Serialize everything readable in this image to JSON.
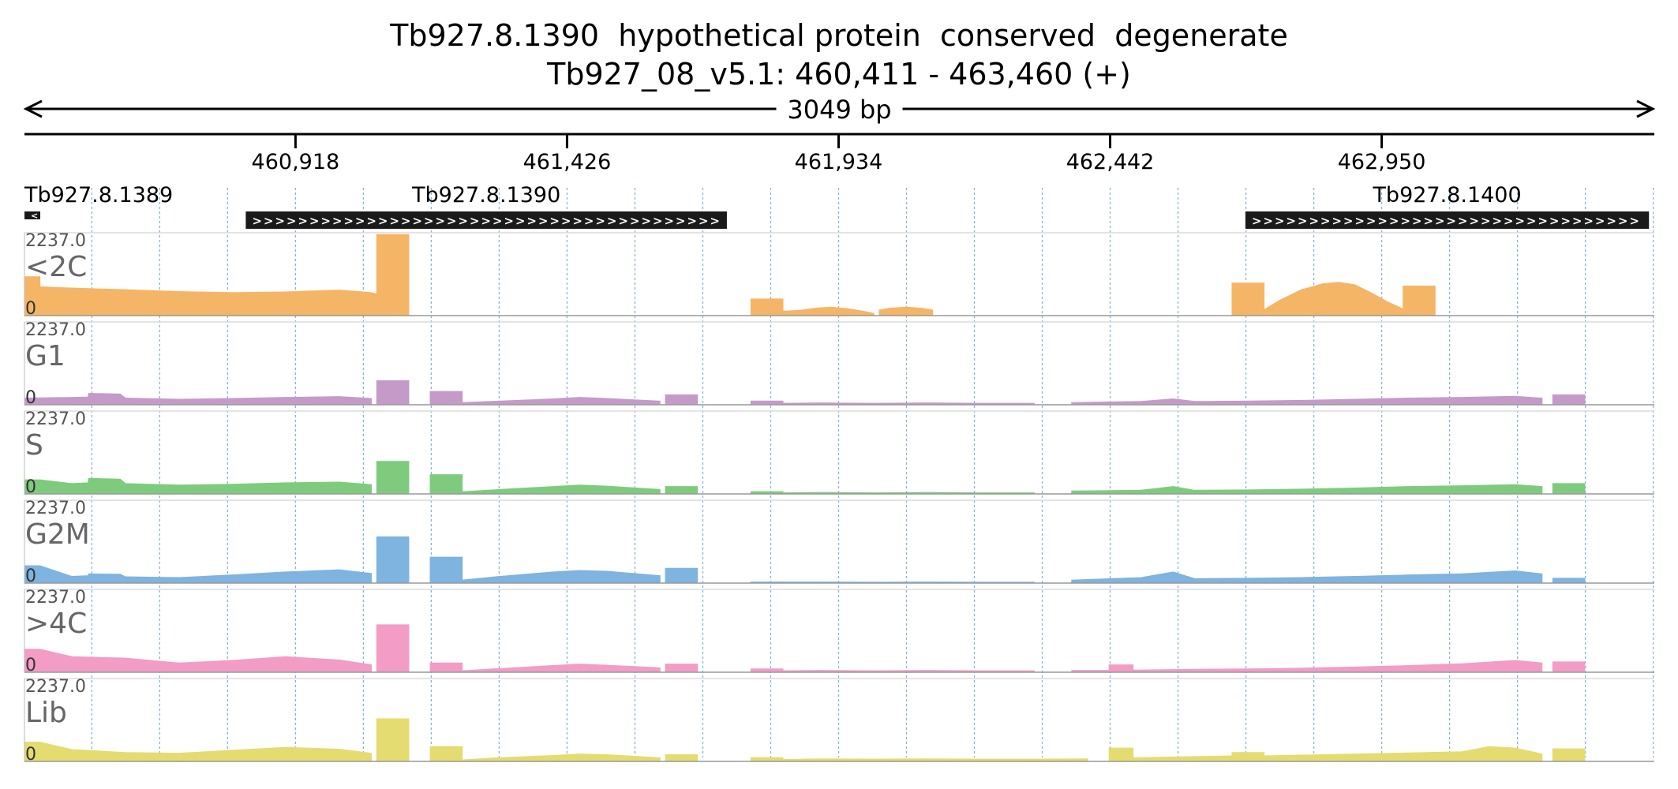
{
  "colors": {
    "lt2C": "#f5b566",
    "G1": "#c49bc8",
    "S": "#7fcb7e",
    "G2M": "#7fb3e0",
    "gt4C": "#f29cc6",
    "Lib": "#e4dc70",
    "gene": "#1a1a1a",
    "grid": "#5b9bd5"
  },
  "chart_data": {
    "type": "area",
    "title": "Tb927.8.1390  hypothetical protein  conserved  degenerate",
    "subtitle": "Tb927_08_v5.1: 460,411 - 463,460 (+)",
    "span_label": "3049 bp",
    "xlim": [
      460411,
      463460
    ],
    "x_ticks": [
      460918,
      461426,
      461934,
      462442,
      462950
    ],
    "x_tick_labels": [
      "460,918",
      "461,426",
      "461,934",
      "462,442",
      "462,950"
    ],
    "grid": true,
    "genes": [
      {
        "name": "Tb927.8.1389",
        "start": 460411,
        "end": 460440,
        "strand": "-"
      },
      {
        "name": "Tb927.8.1390",
        "start": 460825,
        "end": 461725,
        "strand": "+"
      },
      {
        "name": "Tb927.8.1400",
        "start": 462695,
        "end": 463450,
        "strand": "+"
      }
    ],
    "ylim": [
      0,
      2237.0
    ],
    "y_max_label": "2237.0",
    "y_min_label": "0",
    "tracks": [
      {
        "name": "<2C",
        "color_key": "lt2C",
        "segments": [
          {
            "x": [
              460411,
              460440,
              460440,
              460470,
              460510,
              460600,
              460700,
              460800,
              460900,
              461000,
              461060,
              461090,
              461100,
              461070
            ],
            "y": [
              1050,
              1050,
              780,
              760,
              740,
              700,
              650,
              620,
              640,
              690,
              620,
              510,
              340,
              280
            ]
          },
          {
            "x": [
              461070,
              461130
            ],
            "y": [
              2190,
              2190
            ],
            "block": true
          },
          {
            "x": [
              461770,
              461830
            ],
            "y": [
              450,
              450
            ],
            "block": true
          },
          {
            "x": [
              461830,
              461860,
              461890,
              461920,
              461950,
              461980,
              462000
            ],
            "y": [
              120,
              140,
              200,
              230,
              190,
              120,
              60
            ]
          },
          {
            "x": [
              462010,
              462030,
              462060,
              462090,
              462110
            ],
            "y": [
              150,
              200,
              230,
              200,
              150
            ]
          },
          {
            "x": [
              462670,
              462730
            ],
            "y": [
              880,
              880
            ],
            "block": true
          },
          {
            "x": [
              462730,
              462760,
              462800,
              462840,
              462870,
              462900,
              462930,
              462960,
              462990
            ],
            "y": [
              160,
              420,
              700,
              860,
              900,
              830,
              620,
              380,
              180
            ]
          },
          {
            "x": [
              462990,
              463050
            ],
            "y": [
              800,
              800
            ],
            "block": true
          }
        ]
      },
      {
        "name": "G1",
        "color_key": "G1",
        "segments": [
          {
            "x": [
              460411,
              460500,
              460530,
              460531,
              460590,
              460600,
              460700,
              460800,
              460900,
              461000,
              461060
            ],
            "y": [
              180,
              200,
              210,
              310,
              290,
              180,
              150,
              170,
              200,
              220,
              170
            ]
          },
          {
            "x": [
              461070,
              461130
            ],
            "y": [
              650,
              650
            ],
            "block": true
          },
          {
            "x": [
              461170,
              461230
            ],
            "y": [
              360,
              360
            ],
            "block": true
          },
          {
            "x": [
              461230,
              461300,
              461400,
              461450,
              461500,
              461600
            ],
            "y": [
              60,
              100,
              160,
              200,
              170,
              100
            ]
          },
          {
            "x": [
              461610,
              461670
            ],
            "y": [
              270,
              270
            ],
            "block": true
          },
          {
            "x": [
              461770,
              461830
            ],
            "y": [
              100,
              100
            ],
            "block": true
          },
          {
            "x": [
              461830,
              461900,
              462000,
              462100,
              462200,
              462300
            ],
            "y": [
              40,
              50,
              40,
              50,
              40,
              40
            ]
          },
          {
            "x": [
              462370,
              462500,
              462560,
              462600,
              462700,
              462800,
              462900,
              463000,
              463100,
              463200,
              463250
            ],
            "y": [
              60,
              90,
              160,
              90,
              100,
              120,
              150,
              180,
              200,
              230,
              180
            ]
          },
          {
            "x": [
              463270,
              463330
            ],
            "y": [
              270,
              270
            ],
            "block": true
          }
        ]
      },
      {
        "name": "S",
        "color_key": "S",
        "segments": [
          {
            "x": [
              460411,
              460440,
              460500,
              460530,
              460531,
              460590,
              460600,
              460700,
              460800,
              460900,
              461000,
              461060
            ],
            "y": [
              380,
              380,
              280,
              300,
              420,
              400,
              280,
              240,
              260,
              300,
              320,
              250
            ]
          },
          {
            "x": [
              461070,
              461130
            ],
            "y": [
              880,
              880
            ],
            "block": true
          },
          {
            "x": [
              461170,
              461230
            ],
            "y": [
              520,
              520
            ],
            "block": true
          },
          {
            "x": [
              461230,
              461300,
              461400,
              461450,
              461500,
              461600
            ],
            "y": [
              60,
              120,
              200,
              240,
              210,
              120
            ]
          },
          {
            "x": [
              461610,
              461670
            ],
            "y": [
              200,
              200
            ],
            "block": true
          },
          {
            "x": [
              461770,
              461830
            ],
            "y": [
              60,
              60
            ],
            "block": true
          },
          {
            "x": [
              461830,
              461900,
              462000,
              462100,
              462200,
              462300
            ],
            "y": [
              30,
              40,
              30,
              40,
              30,
              30
            ]
          },
          {
            "x": [
              462370,
              462500,
              462560,
              462600,
              462700,
              462800,
              462900,
              463000,
              463100,
              463200,
              463250
            ],
            "y": [
              80,
              100,
              200,
              100,
              110,
              130,
              160,
              200,
              220,
              250,
              200
            ]
          },
          {
            "x": [
              463270,
              463330
            ],
            "y": [
              280,
              280
            ],
            "block": true
          }
        ]
      },
      {
        "name": "G2M",
        "color_key": "G2M",
        "segments": [
          {
            "x": [
              460411,
              460440,
              460500,
              460530,
              460531,
              460590,
              460600,
              460700,
              460800,
              460900,
              461000,
              461060
            ],
            "y": [
              470,
              470,
              180,
              200,
              250,
              240,
              170,
              150,
              220,
              300,
              360,
              260
            ]
          },
          {
            "x": [
              461070,
              461130
            ],
            "y": [
              1250,
              1250
            ],
            "block": true
          },
          {
            "x": [
              461170,
              461230
            ],
            "y": [
              700,
              700
            ],
            "block": true
          },
          {
            "x": [
              461230,
              461300,
              461400,
              461450,
              461500,
              461600
            ],
            "y": [
              80,
              180,
              300,
              340,
              320,
              200
            ]
          },
          {
            "x": [
              461610,
              461670
            ],
            "y": [
              400,
              400
            ],
            "block": true
          },
          {
            "x": [
              461770,
              461830,
              461900,
              462000,
              462100,
              462200,
              462300
            ],
            "y": [
              30,
              30,
              30,
              25,
              30,
              25,
              25
            ]
          },
          {
            "x": [
              462370,
              462500,
              462560,
              462600,
              462700,
              462800,
              462900,
              463000,
              463100,
              463200,
              463250
            ],
            "y": [
              80,
              150,
              300,
              120,
              130,
              150,
              180,
              220,
              250,
              330,
              250
            ]
          },
          {
            "x": [
              463270,
              463330
            ],
            "y": [
              130,
              130
            ],
            "block": true
          }
        ]
      },
      {
        "name": ">4C",
        "color_key": "gt4C",
        "segments": [
          {
            "x": [
              460411,
              460440,
              460500,
              460600,
              460700,
              460800,
              460900,
              461000,
              461060
            ],
            "y": [
              620,
              620,
              420,
              380,
              250,
              320,
              420,
              330,
              200
            ]
          },
          {
            "x": [
              461070,
              461130
            ],
            "y": [
              1280,
              1280
            ],
            "block": true
          },
          {
            "x": [
              461170,
              461230
            ],
            "y": [
              250,
              250
            ],
            "block": true
          },
          {
            "x": [
              461230,
              461300,
              461400,
              461450,
              461500,
              461600
            ],
            "y": [
              40,
              100,
              180,
              220,
              190,
              120
            ]
          },
          {
            "x": [
              461610,
              461670
            ],
            "y": [
              220,
              220
            ],
            "block": true
          },
          {
            "x": [
              461770,
              461830
            ],
            "y": [
              90,
              90
            ],
            "block": true
          },
          {
            "x": [
              461830,
              461900,
              462000,
              462100,
              462200,
              462300
            ],
            "y": [
              40,
              50,
              40,
              50,
              40,
              40
            ]
          },
          {
            "x": [
              462370,
              462440
            ],
            "y": [
              50,
              50
            ]
          },
          {
            "x": [
              462440,
              462485
            ],
            "y": [
              200,
              200
            ],
            "block": true
          },
          {
            "x": [
              462485,
              462600,
              462700,
              462800,
              462900,
              463000,
              463100,
              463200,
              463250
            ],
            "y": [
              60,
              80,
              90,
              110,
              140,
              180,
              230,
              320,
              250
            ]
          },
          {
            "x": [
              463270,
              463330
            ],
            "y": [
              280,
              280
            ],
            "block": true
          }
        ]
      },
      {
        "name": "Lib",
        "color_key": "Lib",
        "segments": [
          {
            "x": [
              460411,
              460440,
              460500,
              460600,
              460700,
              460800,
              460900,
              461000,
              461060
            ],
            "y": [
              520,
              520,
              320,
              240,
              220,
              300,
              380,
              330,
              220
            ]
          },
          {
            "x": [
              461070,
              461130
            ],
            "y": [
              1150,
              1150
            ],
            "block": true
          },
          {
            "x": [
              461170,
              461230
            ],
            "y": [
              400,
              400
            ],
            "block": true
          },
          {
            "x": [
              461230,
              461300,
              461400,
              461450,
              461500,
              461600
            ],
            "y": [
              40,
              100,
              160,
              200,
              180,
              100
            ]
          },
          {
            "x": [
              461610,
              461670
            ],
            "y": [
              180,
              180
            ],
            "block": true
          },
          {
            "x": [
              461770,
              461830
            ],
            "y": [
              100,
              100
            ],
            "block": true
          },
          {
            "x": [
              461830,
              461900,
              462000,
              462100,
              462200,
              462300,
              462400
            ],
            "y": [
              50,
              70,
              60,
              70,
              60,
              60,
              70
            ]
          },
          {
            "x": [
              462440,
              462485
            ],
            "y": [
              360,
              360
            ],
            "block": true
          },
          {
            "x": [
              462485,
              462600,
              462670
            ],
            "y": [
              100,
              130,
              150
            ]
          },
          {
            "x": [
              462670,
              462730
            ],
            "y": [
              240,
              240
            ],
            "block": true
          },
          {
            "x": [
              462730,
              462800,
              462900,
              463000,
              463100,
              463150,
              463200,
              463250
            ],
            "y": [
              150,
              170,
              200,
              230,
              260,
              400,
              360,
              200
            ]
          },
          {
            "x": [
              463270,
              463330
            ],
            "y": [
              340,
              340
            ],
            "block": true
          }
        ]
      }
    ]
  }
}
